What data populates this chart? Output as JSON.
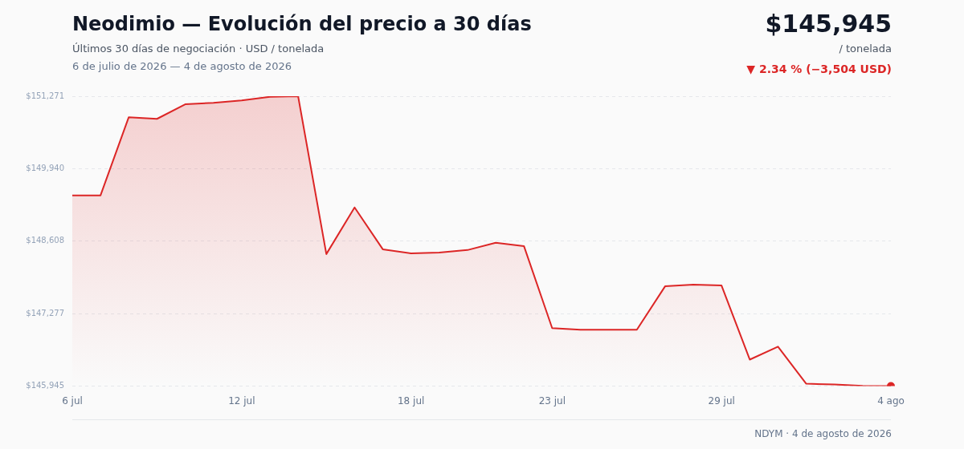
{
  "chart_data": {
    "type": "area",
    "title": "Neodimio — Evolución del precio a 30 días",
    "subtitle": "Últimos 30 días de negociación · USD / tonelada",
    "annotations": [
      "6 de julio de 2026 — 4 de agosto de 2026",
      "$145,945",
      "/ tonelada",
      "▼ 2.34 % (−3,504 USD)",
      "NDYM · 4 de agosto de 2026"
    ],
    "categories": [
      "6 jul",
      null,
      null,
      null,
      null,
      null,
      "12 jul",
      null,
      null,
      null,
      null,
      null,
      "18 jul",
      null,
      null,
      null,
      null,
      "23 jul",
      null,
      null,
      null,
      null,
      null,
      "29 jul",
      null,
      null,
      null,
      null,
      null,
      "4 ago"
    ],
    "series": [
      {
        "color": "#dc2626",
        "values": [
          149449,
          149449,
          150885,
          150855,
          151122,
          151151,
          151195,
          151260,
          151271,
          148371,
          149228,
          148459,
          148385,
          148400,
          148445,
          148578,
          148518,
          147010,
          146980,
          146980,
          146980,
          147779,
          147809,
          147794,
          146433,
          146670,
          145989,
          145975,
          145950,
          145945
        ]
      }
    ],
    "ylim": [
      145945,
      151271
    ],
    "yticks": [
      {
        "value": 145945,
        "label": "$145,945"
      },
      {
        "value": 147277,
        "label": "$147,277"
      },
      {
        "value": 148608,
        "label": "$148,608"
      },
      {
        "value": 149940,
        "label": "$149,940"
      },
      {
        "value": 151271,
        "label": "$151,271"
      }
    ],
    "grid": "y",
    "legend": false
  }
}
